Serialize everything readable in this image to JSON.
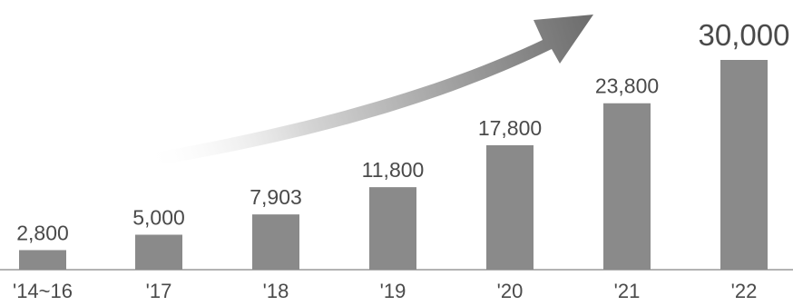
{
  "chart_data": {
    "type": "bar",
    "categories": [
      "'14~16",
      "'17",
      "'18",
      "'19",
      "'20",
      "'21",
      "'22"
    ],
    "values": [
      2800,
      5000,
      7903,
      11800,
      17800,
      23800,
      30000
    ],
    "value_labels": [
      "2,800",
      "5,000",
      "7,903",
      "11,800",
      "17,800",
      "23,800",
      "30,000"
    ],
    "title": "",
    "xlabel": "",
    "ylabel": "",
    "ylim": [
      0,
      30000
    ],
    "grid": false,
    "legend": "none",
    "annotations": [
      "rising-trend-arrow"
    ],
    "colors": {
      "bar": "#8a8a8a",
      "axis": "#9a9a9a",
      "text": "#4a4a4a",
      "arrow": "#707070"
    }
  }
}
